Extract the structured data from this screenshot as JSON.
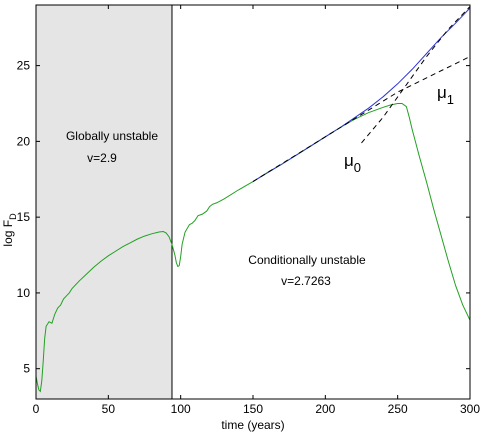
{
  "chart_data": {
    "type": "line",
    "xlabel": "time (years)",
    "ylabel": {
      "main": "log F",
      "sub": "D"
    },
    "xlim": [
      0,
      300
    ],
    "ylim": [
      3,
      29
    ],
    "xticks": [
      0,
      50,
      100,
      150,
      200,
      250,
      300
    ],
    "yticks": [
      5,
      10,
      15,
      20,
      25
    ],
    "grid": false,
    "legend": "none",
    "shaded_region": {
      "x": [
        0,
        94
      ],
      "color": "#e5e5e5"
    },
    "colors": {
      "green": "#22a022",
      "blue": "#2f35d6",
      "dashed": "#000000",
      "shade": "#e5e5e5"
    },
    "annotations": {
      "global_title": "Globally unstable",
      "global_v": "v=2.9",
      "cond_title": "Conditionally unstable",
      "cond_v": "v=2.7263",
      "mu0": {
        "main": "μ",
        "sub": "0"
      },
      "mu1": {
        "main": "μ",
        "sub": "1"
      }
    },
    "series": [
      {
        "color": "#22a022",
        "style": "solid",
        "points": [
          [
            0,
            4.5
          ],
          [
            1,
            4.0
          ],
          [
            2,
            3.6
          ],
          [
            3,
            3.5
          ],
          [
            4,
            4.2
          ],
          [
            5,
            5.5
          ],
          [
            6,
            7.0
          ],
          [
            7,
            7.8
          ],
          [
            9,
            8.1
          ],
          [
            11,
            8.0
          ],
          [
            13,
            8.6
          ],
          [
            15,
            9.0
          ],
          [
            17,
            9.2
          ],
          [
            19,
            9.6
          ],
          [
            21,
            9.8
          ],
          [
            23,
            10.0
          ],
          [
            25,
            10.3
          ],
          [
            30,
            10.8
          ],
          [
            35,
            11.25
          ],
          [
            40,
            11.7
          ],
          [
            45,
            12.1
          ],
          [
            50,
            12.45
          ],
          [
            55,
            12.75
          ],
          [
            60,
            13.05
          ],
          [
            65,
            13.3
          ],
          [
            70,
            13.55
          ],
          [
            75,
            13.75
          ],
          [
            80,
            13.9
          ],
          [
            85,
            14.02
          ],
          [
            88,
            14.05
          ],
          [
            90,
            13.95
          ],
          [
            92,
            13.7
          ],
          [
            94,
            13.2
          ],
          [
            96,
            12.5
          ],
          [
            97,
            12.0
          ],
          [
            98,
            11.75
          ],
          [
            99,
            11.8
          ],
          [
            100,
            12.4
          ],
          [
            101,
            13.2
          ],
          [
            103,
            14.0
          ],
          [
            106,
            14.5
          ],
          [
            108,
            14.6
          ],
          [
            110,
            14.8
          ],
          [
            112,
            15.1
          ],
          [
            115,
            15.2
          ],
          [
            118,
            15.4
          ],
          [
            120,
            15.7
          ],
          [
            122,
            15.85
          ],
          [
            125,
            15.95
          ],
          [
            130,
            16.2
          ],
          [
            140,
            16.8
          ],
          [
            150,
            17.35
          ],
          [
            160,
            17.95
          ],
          [
            170,
            18.5
          ],
          [
            180,
            19.1
          ],
          [
            190,
            19.7
          ],
          [
            200,
            20.3
          ],
          [
            210,
            20.9
          ],
          [
            220,
            21.45
          ],
          [
            230,
            21.9
          ],
          [
            240,
            22.25
          ],
          [
            245,
            22.4
          ],
          [
            250,
            22.5
          ],
          [
            253,
            22.5
          ],
          [
            256,
            22.3
          ],
          [
            258,
            21.6
          ],
          [
            260,
            20.8
          ],
          [
            265,
            19.0
          ],
          [
            270,
            17.3
          ],
          [
            275,
            15.5
          ],
          [
            280,
            13.8
          ],
          [
            285,
            12.1
          ],
          [
            290,
            10.5
          ],
          [
            295,
            9.2
          ],
          [
            300,
            8.2
          ]
        ]
      },
      {
        "color": "#2f35d6",
        "style": "solid",
        "points": [
          [
            150,
            17.35
          ],
          [
            170,
            18.5
          ],
          [
            190,
            19.7
          ],
          [
            200,
            20.3
          ],
          [
            210,
            20.9
          ],
          [
            220,
            21.55
          ],
          [
            230,
            22.2
          ],
          [
            240,
            22.95
          ],
          [
            250,
            23.8
          ],
          [
            260,
            24.75
          ],
          [
            270,
            25.8
          ],
          [
            280,
            26.85
          ],
          [
            290,
            27.8
          ],
          [
            300,
            28.8
          ]
        ]
      },
      {
        "color": "#000000",
        "style": "dashed",
        "points": [
          [
            150,
            17.35
          ],
          [
            200,
            20.3
          ],
          [
            250,
            23.25
          ],
          [
            300,
            25.6
          ]
        ]
      },
      {
        "color": "#000000",
        "style": "dashed",
        "points": [
          [
            225,
            19.9
          ],
          [
            240,
            21.6
          ],
          [
            255,
            23.6
          ],
          [
            270,
            25.6
          ],
          [
            285,
            27.4
          ],
          [
            300,
            28.9
          ]
        ]
      }
    ]
  }
}
